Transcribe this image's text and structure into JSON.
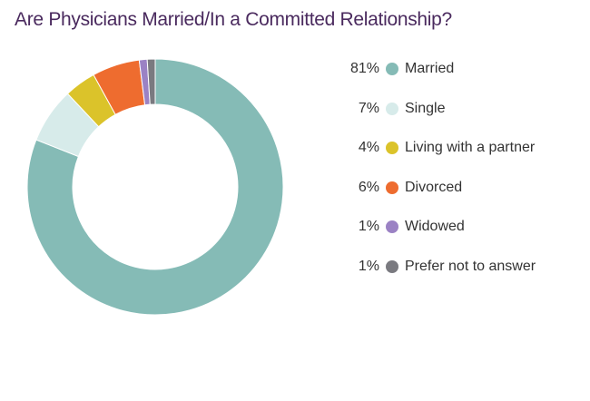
{
  "chart_data": {
    "type": "pie",
    "title": "Are Physicians Married/In a Committed Relationship?",
    "categories": [
      "Married",
      "Single",
      "Living with a partner",
      "Divorced",
      "Widowed",
      "Prefer not to answer"
    ],
    "values": [
      81,
      7,
      4,
      6,
      1,
      1
    ],
    "value_labels": [
      "81%",
      "7%",
      "4%",
      "6%",
      "1%",
      "1%"
    ],
    "colors": [
      "#85bbb6",
      "#d7ebea",
      "#dbc32a",
      "#ee6c2f",
      "#9b82c4",
      "#7a7a80"
    ],
    "donut": true,
    "legend": "right"
  }
}
